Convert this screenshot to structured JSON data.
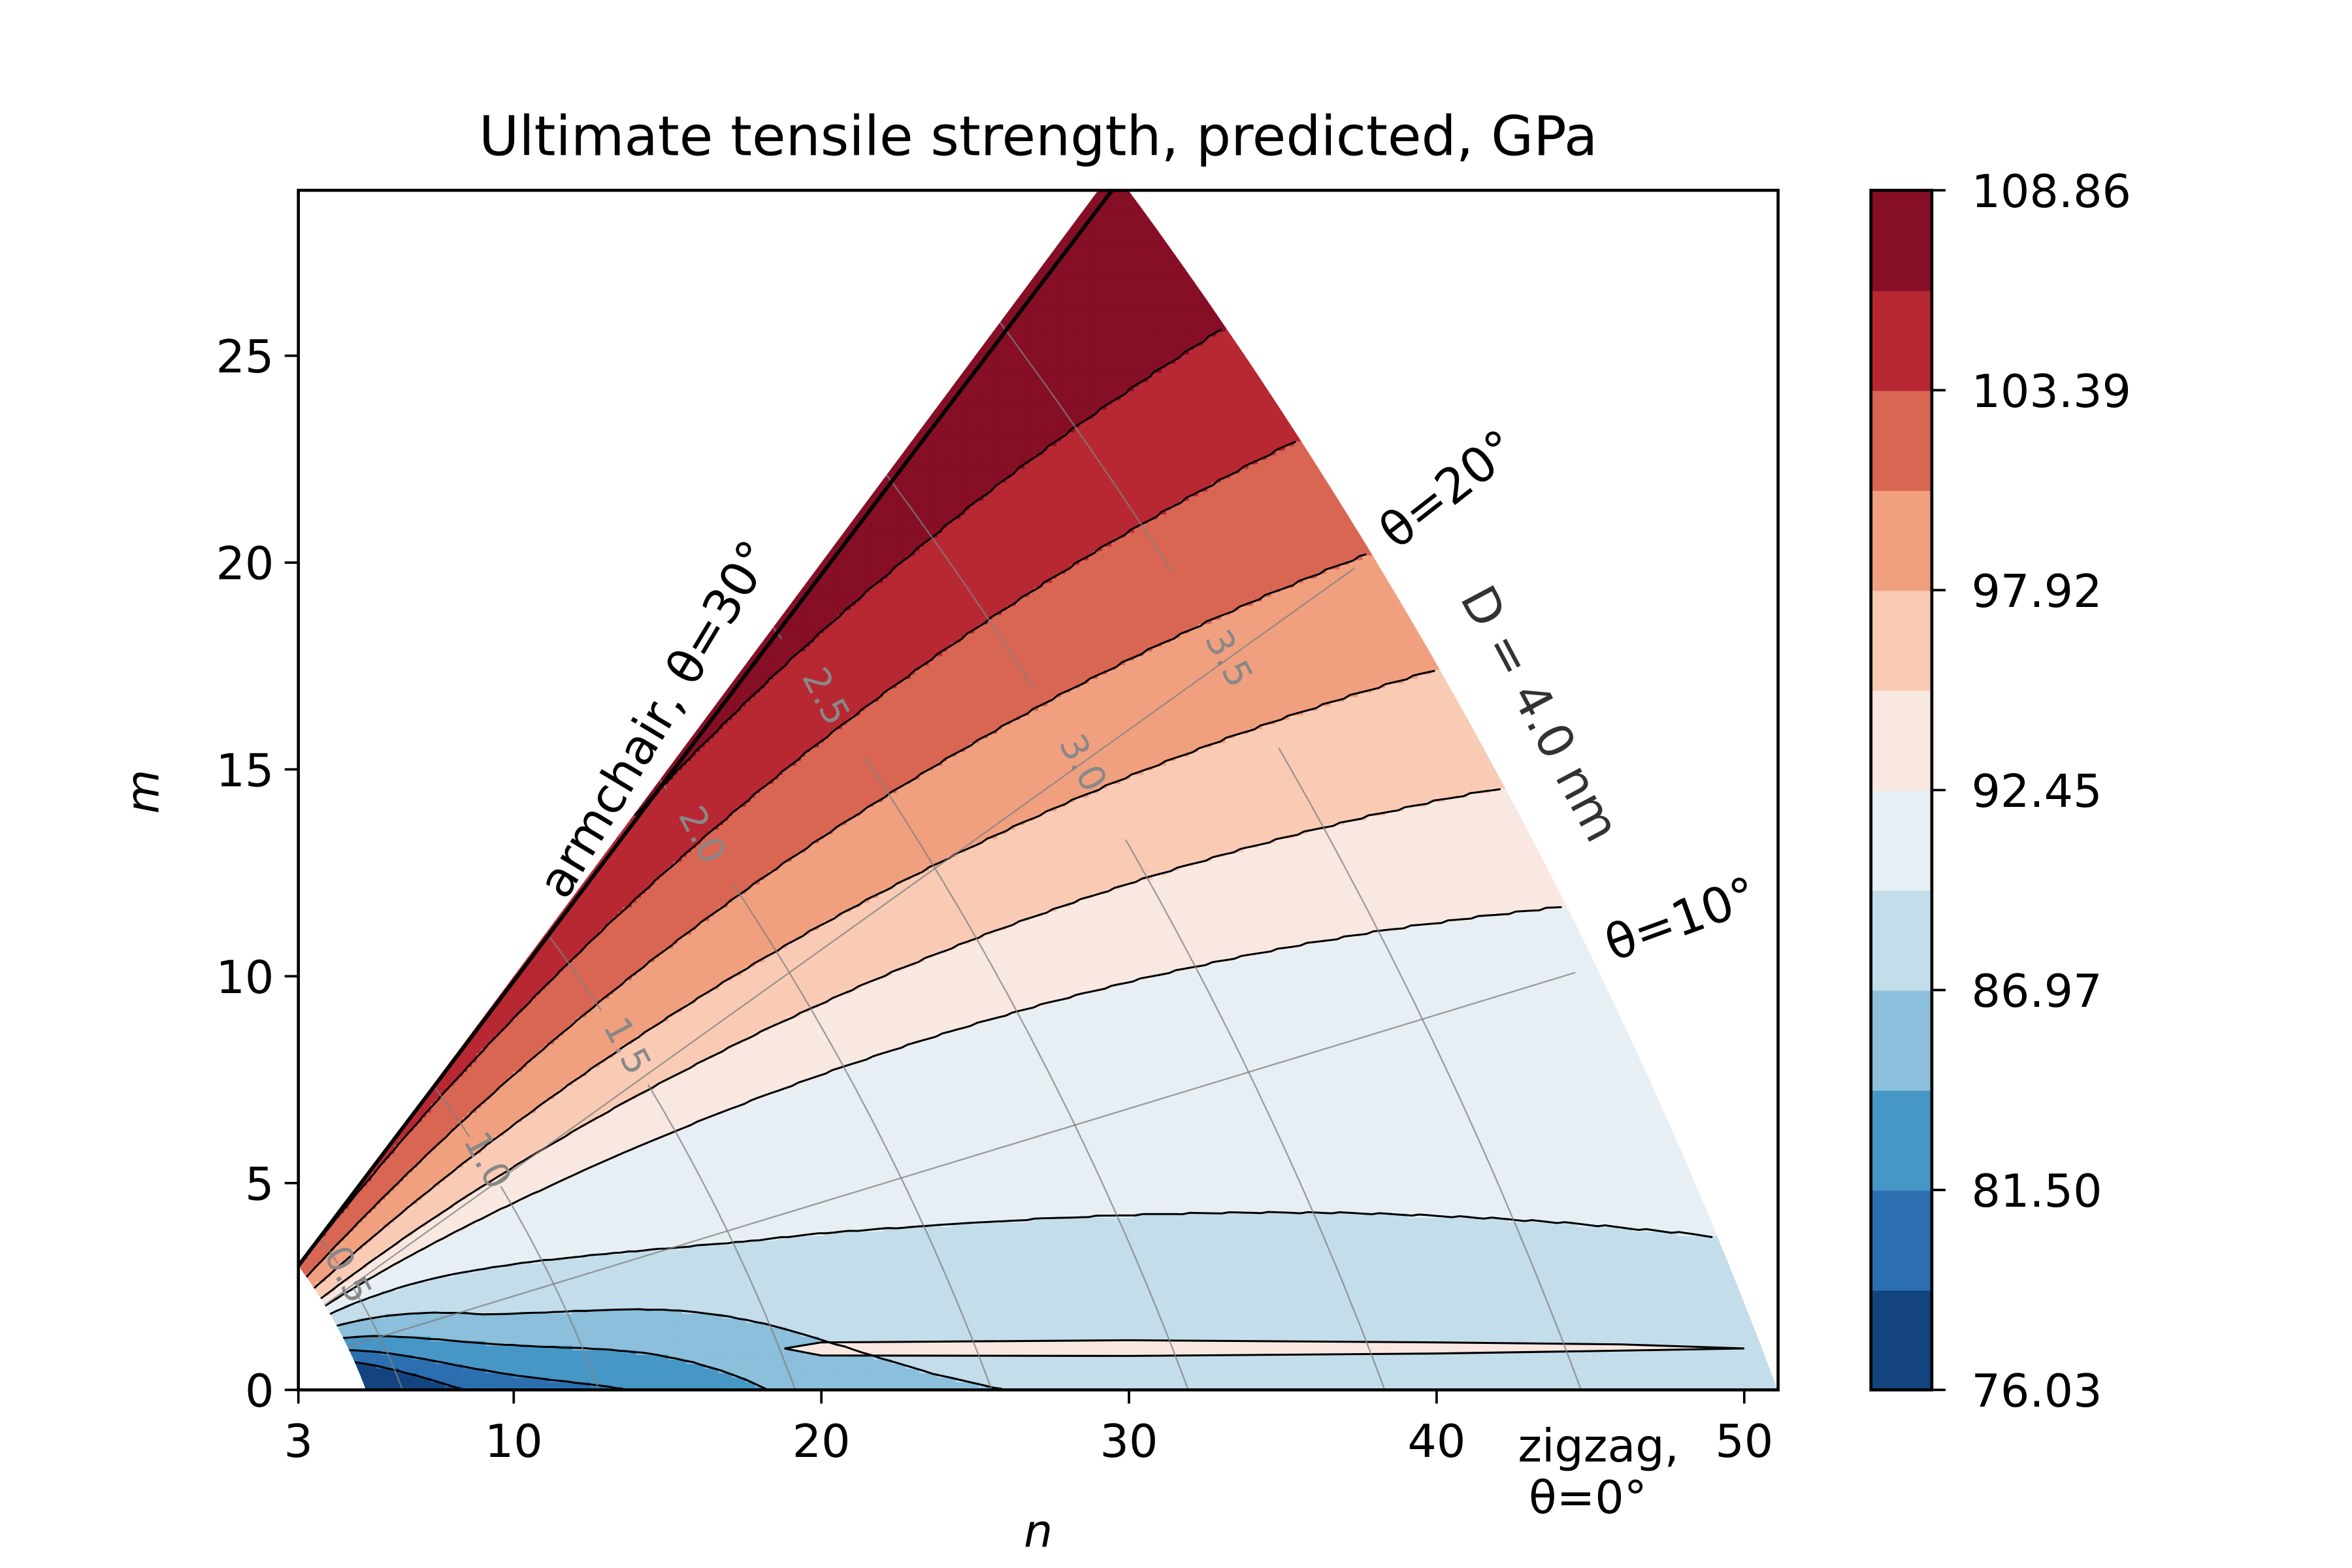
{
  "chart_data": {
    "type": "heatmap",
    "subtype": "filled-contour",
    "title": "Ultimate tensile strength, predicted, GPa",
    "xlabel": "n",
    "ylabel": "m",
    "xlim": [
      3,
      51.1
    ],
    "ylim": [
      0,
      29
    ],
    "xticks": [
      3,
      10,
      20,
      30,
      40,
      50
    ],
    "yticks": [
      0,
      5,
      10,
      15,
      20,
      25
    ],
    "grid": false,
    "region": {
      "description": "chiral indices (n,m) with m<=n and diameter D<=4.0 nm",
      "armchair_line": "m = n",
      "max_diameter_nm": 4.0
    },
    "colorbar": {
      "placement": "right",
      "levels": [
        76.03,
        78.77,
        81.5,
        84.24,
        86.97,
        89.71,
        92.45,
        95.18,
        97.92,
        100.66,
        103.39,
        106.13,
        108.86
      ],
      "tick_labels": [
        "76.03",
        "81.50",
        "86.97",
        "92.45",
        "97.92",
        "103.39",
        "108.86"
      ],
      "colors": [
        "#134480",
        "#2b6fb0",
        "#4697c6",
        "#8bbfdb",
        "#c3ddeb",
        "#e7eff5",
        "#f8e8e1",
        "#f9cbb5",
        "#f0a07f",
        "#d96653",
        "#b82832",
        "#860f25"
      ]
    },
    "trend": "strength increases with chiral angle theta (max near armchair, theta=30deg); lowest values at small diameter near zigzag; small higher-strength island near m=1, n=19-50",
    "diameter_gridlines": {
      "values_nm": [
        0.5,
        1.0,
        1.5,
        2.0,
        2.5,
        3.0,
        3.5
      ],
      "labels": [
        "0.5",
        "1.0",
        "1.5",
        "2.0",
        "2.5",
        "3.0",
        "3.5"
      ],
      "color": "#808080"
    },
    "angle_gridlines": {
      "values_deg": [
        10,
        20
      ]
    },
    "annotations": [
      {
        "id": "armchair",
        "text": "armchair, θ=30°"
      },
      {
        "id": "theta20",
        "text": "θ=20°"
      },
      {
        "id": "theta10",
        "text": "θ=10°"
      },
      {
        "id": "diameter",
        "text": "D = 4.0 nm"
      },
      {
        "id": "zigzag1",
        "text": "zigzag,"
      },
      {
        "id": "zigzag2",
        "text": "θ=0°"
      }
    ]
  }
}
